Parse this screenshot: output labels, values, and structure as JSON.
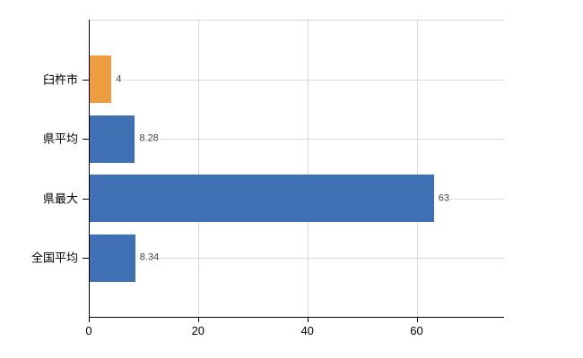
{
  "chart_data": {
    "type": "bar",
    "orientation": "horizontal",
    "title": "",
    "xlabel": "",
    "ylabel": "",
    "categories": [
      "臼杵市",
      "県平均",
      "県最大",
      "全国平均"
    ],
    "values": [
      4,
      8.28,
      63,
      8.34
    ],
    "value_labels": [
      "4",
      "8.28",
      "63",
      "8.34"
    ],
    "bar_colors": [
      "#ee9c40",
      "#3f70b4",
      "#3f70b4",
      "#3f70b4"
    ],
    "x_ticks": [
      0,
      20,
      40,
      60
    ],
    "x_tick_labels": [
      "0",
      "20",
      "40",
      "60"
    ],
    "xlim": [
      0,
      76
    ],
    "grid": true,
    "legend": "none"
  },
  "colors": {
    "highlight_bar": "#ee9c40",
    "default_bar": "#3f70b4",
    "gridline": "#d9d9d9",
    "axis": "#000000",
    "category_label": "#000000",
    "value_label": "#404040",
    "background": "#ffffff"
  }
}
